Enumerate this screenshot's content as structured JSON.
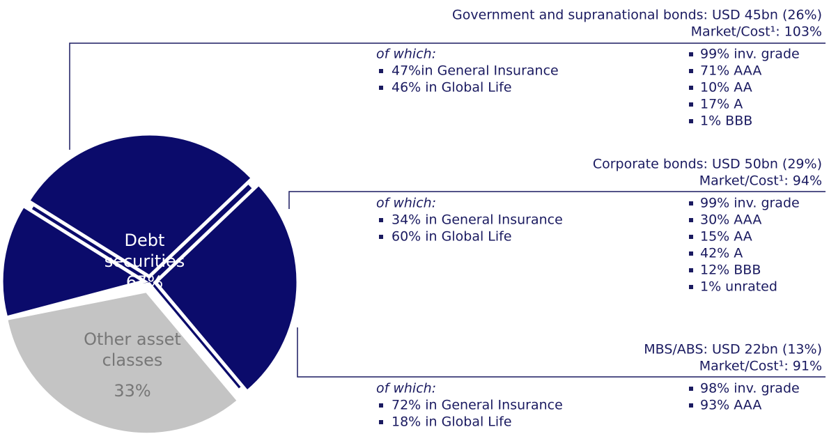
{
  "chart_data": {
    "type": "pie",
    "categories": [
      "Debt securities",
      "Other asset classes"
    ],
    "values": [
      67,
      33
    ],
    "value_labels": [
      "67%",
      "33%"
    ],
    "colors": [
      "#0b0b6b",
      "#c4c4c4"
    ],
    "breakdown": [
      {
        "title": "Government and supranational bonds: USD 45bn (26%)",
        "value": 26,
        "market_cost": "Market/Cost¹: 103%",
        "of_which": "of which:",
        "segments": [
          "47%in General Insurance",
          "46% in Global Life"
        ],
        "ratings": [
          "99% inv. grade",
          "71% AAA",
          "10% AA",
          "17% A",
          "1% BBB"
        ]
      },
      {
        "title": "Corporate bonds: USD 50bn (29%)",
        "value": 29,
        "market_cost": "Market/Cost¹: 94%",
        "of_which": "of which:",
        "segments": [
          "34% in General Insurance",
          "60% in Global Life"
        ],
        "ratings": [
          "99% inv. grade",
          "30% AAA",
          "15% AA",
          "42% A",
          "12% BBB",
          "1% unrated"
        ]
      },
      {
        "title": "MBS/ABS: USD 22bn (13%)",
        "value": 13,
        "market_cost": "Market/Cost¹: 91%",
        "of_which": "of which:",
        "segments": [
          "72% in General Insurance",
          "18% in Global Life"
        ],
        "ratings": [
          "98% inv. grade",
          "93% AAA"
        ]
      }
    ]
  }
}
